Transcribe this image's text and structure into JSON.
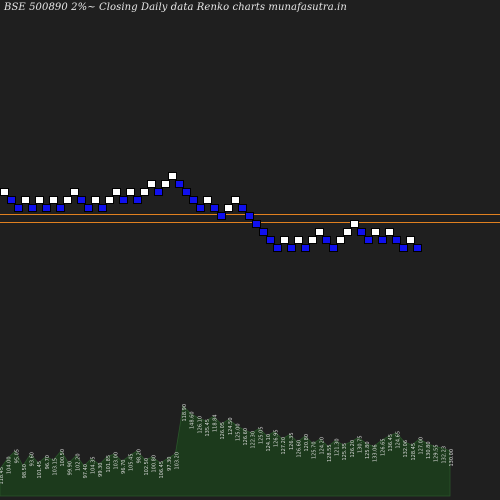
{
  "chart_data": {
    "type": "renko",
    "title": "BSE 500890  2%~  Closing Daily data  Renko  charts munafasutra.in",
    "price_lines": [
      153.6,
      151.0
    ],
    "bricks": [
      {
        "level": 1,
        "dir": "up"
      },
      {
        "level": 0,
        "dir": "down"
      },
      {
        "level": -1,
        "dir": "down"
      },
      {
        "level": 0,
        "dir": "up"
      },
      {
        "level": -1,
        "dir": "down"
      },
      {
        "level": 0,
        "dir": "up"
      },
      {
        "level": -1,
        "dir": "down"
      },
      {
        "level": 0,
        "dir": "up"
      },
      {
        "level": -1,
        "dir": "down"
      },
      {
        "level": 0,
        "dir": "up"
      },
      {
        "level": 1,
        "dir": "up"
      },
      {
        "level": 0,
        "dir": "down"
      },
      {
        "level": -1,
        "dir": "down"
      },
      {
        "level": 0,
        "dir": "up"
      },
      {
        "level": -1,
        "dir": "down"
      },
      {
        "level": 0,
        "dir": "up"
      },
      {
        "level": 1,
        "dir": "up"
      },
      {
        "level": 0,
        "dir": "down"
      },
      {
        "level": 1,
        "dir": "up"
      },
      {
        "level": 0,
        "dir": "down"
      },
      {
        "level": 1,
        "dir": "up"
      },
      {
        "level": 2,
        "dir": "up"
      },
      {
        "level": 1,
        "dir": "down"
      },
      {
        "level": 2,
        "dir": "up"
      },
      {
        "level": 3,
        "dir": "up"
      },
      {
        "level": 2,
        "dir": "down"
      },
      {
        "level": 1,
        "dir": "down"
      },
      {
        "level": 0,
        "dir": "down"
      },
      {
        "level": -1,
        "dir": "down"
      },
      {
        "level": 0,
        "dir": "up"
      },
      {
        "level": -1,
        "dir": "down"
      },
      {
        "level": -2,
        "dir": "down"
      },
      {
        "level": -1,
        "dir": "up"
      },
      {
        "level": 0,
        "dir": "up"
      },
      {
        "level": -1,
        "dir": "down"
      },
      {
        "level": -2,
        "dir": "down"
      },
      {
        "level": -3,
        "dir": "down"
      },
      {
        "level": -4,
        "dir": "down"
      },
      {
        "level": -5,
        "dir": "down"
      },
      {
        "level": -6,
        "dir": "down"
      },
      {
        "level": -5,
        "dir": "up"
      },
      {
        "level": -6,
        "dir": "down"
      },
      {
        "level": -5,
        "dir": "up"
      },
      {
        "level": -6,
        "dir": "down"
      },
      {
        "level": -5,
        "dir": "up"
      },
      {
        "level": -4,
        "dir": "up"
      },
      {
        "level": -5,
        "dir": "down"
      },
      {
        "level": -6,
        "dir": "down"
      },
      {
        "level": -5,
        "dir": "up"
      },
      {
        "level": -4,
        "dir": "up"
      },
      {
        "level": -3,
        "dir": "up"
      },
      {
        "level": -4,
        "dir": "down"
      },
      {
        "level": -5,
        "dir": "down"
      },
      {
        "level": -4,
        "dir": "up"
      },
      {
        "level": -5,
        "dir": "down"
      },
      {
        "level": -4,
        "dir": "up"
      },
      {
        "level": -5,
        "dir": "down"
      },
      {
        "level": -6,
        "dir": "down"
      },
      {
        "level": -5,
        "dir": "up"
      },
      {
        "level": -6,
        "dir": "down"
      }
    ],
    "volume": {
      "values": [
        18,
        25,
        30,
        20,
        28,
        22,
        26,
        24,
        30,
        22,
        27,
        20,
        25,
        21,
        26,
        28,
        23,
        27,
        30,
        24,
        26,
        22,
        25,
        28,
        60,
        55,
        52,
        50,
        53,
        48,
        51,
        47,
        44,
        42,
        45,
        40,
        43,
        38,
        41,
        36,
        40,
        35,
        38,
        33,
        37,
        34,
        36,
        39,
        35,
        33,
        37,
        40,
        42,
        36,
        34,
        38,
        35,
        33,
        32,
        30
      ],
      "labels": [
        "118.45",
        "104.00",
        "95.05",
        "98.50",
        "93.60",
        "101.45",
        "96.70",
        "103.15",
        "100.50",
        "99.90",
        "102.20",
        "97.40",
        "104.35",
        "99.30",
        "101.85",
        "103.00",
        "96.70",
        "105.45",
        "98.20",
        "102.50",
        "100.80",
        "106.45",
        "97.30",
        "103.20",
        "118.90",
        "148.60",
        "126.10",
        "135.45",
        "118.84",
        "126.05",
        "124.50",
        "125.00",
        "126.60",
        "122.30",
        "125.05",
        "124.10",
        "126.95",
        "127.20",
        "126.35",
        "126.60",
        "120.80",
        "125.70",
        "124.20",
        "128.55",
        "121.30",
        "125.35",
        "126.20",
        "130.75",
        "125.80",
        "133.06",
        "126.65",
        "136.45",
        "124.65",
        "132.06",
        "128.45",
        "127.00",
        "130.80",
        "129.55",
        "132.23",
        "130.00"
      ],
      "color": "#1c3a1c"
    },
    "colors": {
      "up_fill": "#ffffff",
      "down_fill": "#1010ee",
      "line": "#e08020",
      "background": "#1f1f1f"
    }
  }
}
